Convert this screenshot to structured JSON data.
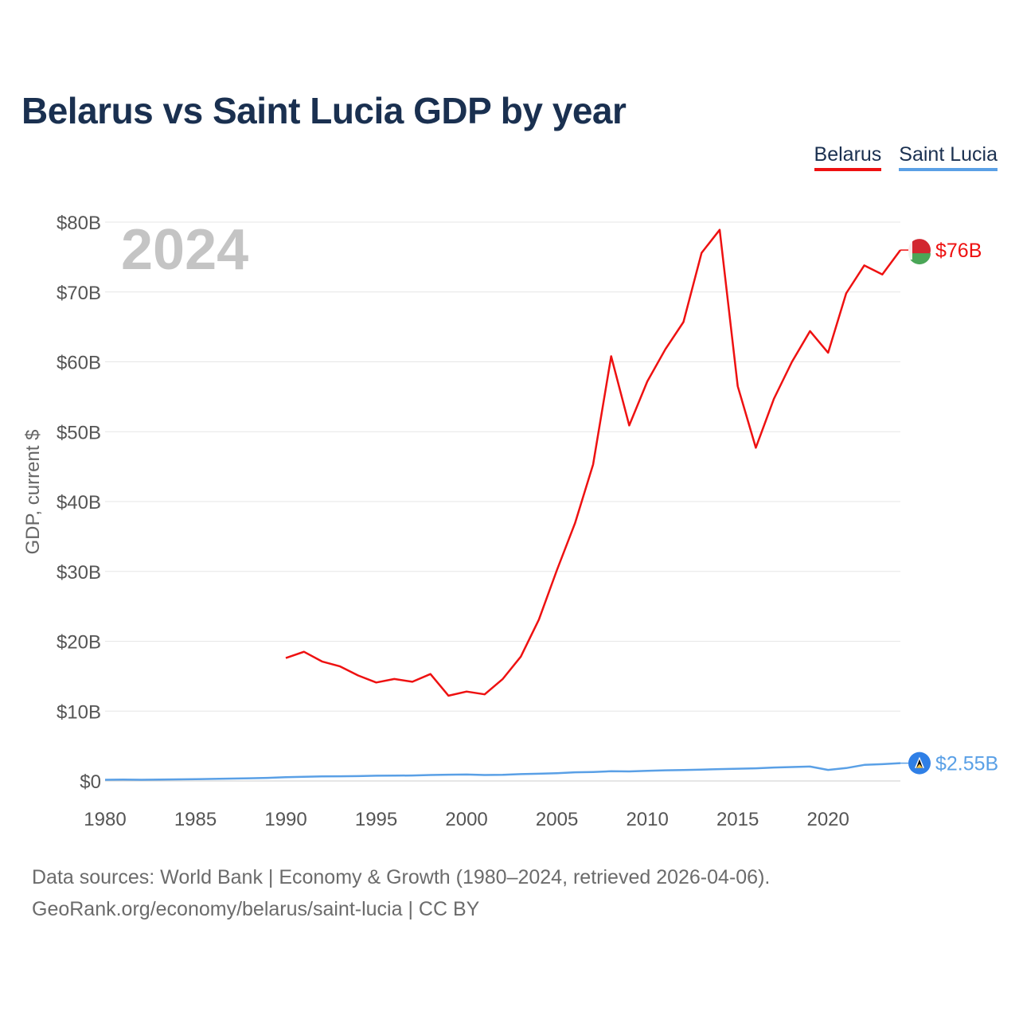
{
  "title": "Belarus vs Saint Lucia GDP by year",
  "legend": [
    {
      "label": "Belarus",
      "color": "#ee1111"
    },
    {
      "label": "Saint Lucia",
      "color": "#5aa0e6"
    }
  ],
  "footer": {
    "line1": "Data sources: World Bank | Economy & Growth (1980–2024, retrieved 2026-04-06).",
    "line2": "GeoRank.org/economy/belarus/saint-lucia | CC BY"
  },
  "chart_data": {
    "type": "line",
    "title": "Belarus vs Saint Lucia GDP by year",
    "year_label": "2024",
    "ylabel": "GDP, current $",
    "xlabel": "",
    "xlim": [
      1980,
      2024
    ],
    "ylim": [
      0,
      80
    ],
    "unit": "billion US$",
    "x_ticks": [
      1980,
      1985,
      1990,
      1995,
      2000,
      2005,
      2010,
      2015,
      2020
    ],
    "x_tick_labels": [
      "1980",
      "1985",
      "1990",
      "1995",
      "2000",
      "2005",
      "2010",
      "2015",
      "2020"
    ],
    "y_ticks": [
      0,
      10,
      20,
      30,
      40,
      50,
      60,
      70,
      80
    ],
    "y_tick_labels": [
      "$0",
      "$10B",
      "$20B",
      "$30B",
      "$40B",
      "$50B",
      "$60B",
      "$70B",
      "$80B"
    ],
    "grid": true,
    "legend_position": "top-right",
    "series": [
      {
        "name": "Belarus",
        "color": "#ee1111",
        "end_label": "$76B",
        "flag_colors": [
          "#d22730",
          "#4aa657",
          "#ffffff"
        ],
        "x": [
          1990,
          1991,
          1992,
          1993,
          1994,
          1995,
          1996,
          1997,
          1998,
          1999,
          2000,
          2001,
          2002,
          2003,
          2004,
          2005,
          2006,
          2007,
          2008,
          2009,
          2010,
          2011,
          2012,
          2013,
          2014,
          2015,
          2016,
          2017,
          2018,
          2019,
          2020,
          2021,
          2022,
          2023,
          2024
        ],
        "values": [
          17.6,
          18.5,
          17.1,
          16.4,
          15.1,
          14.1,
          14.6,
          14.2,
          15.3,
          12.2,
          12.8,
          12.4,
          14.6,
          17.8,
          23.1,
          30.2,
          36.9,
          45.3,
          60.8,
          50.9,
          57.2,
          61.8,
          65.7,
          75.6,
          78.9,
          56.5,
          47.7,
          54.7,
          60.0,
          64.4,
          61.3,
          69.8,
          73.8,
          72.5,
          76.0
        ]
      },
      {
        "name": "Saint Lucia",
        "color": "#5aa0e6",
        "end_label": "$2.55B",
        "flag_colors": [
          "#2f7fe6",
          "#ffffff",
          "#000000",
          "#f5c242"
        ],
        "x": [
          1980,
          1981,
          1982,
          1983,
          1984,
          1985,
          1986,
          1987,
          1988,
          1989,
          1990,
          1991,
          1992,
          1993,
          1994,
          1995,
          1996,
          1997,
          1998,
          1999,
          2000,
          2001,
          2002,
          2003,
          2004,
          2005,
          2006,
          2007,
          2008,
          2009,
          2010,
          2011,
          2012,
          2013,
          2014,
          2015,
          2016,
          2017,
          2018,
          2019,
          2020,
          2021,
          2022,
          2023,
          2024
        ],
        "values": [
          0.17,
          0.19,
          0.17,
          0.2,
          0.23,
          0.26,
          0.3,
          0.34,
          0.39,
          0.45,
          0.55,
          0.59,
          0.66,
          0.67,
          0.7,
          0.75,
          0.76,
          0.79,
          0.86,
          0.9,
          0.92,
          0.86,
          0.88,
          0.98,
          1.04,
          1.12,
          1.24,
          1.29,
          1.39,
          1.37,
          1.45,
          1.53,
          1.57,
          1.63,
          1.7,
          1.76,
          1.81,
          1.93,
          2.0,
          2.06,
          1.58,
          1.85,
          2.3,
          2.4,
          2.55
        ]
      }
    ]
  }
}
